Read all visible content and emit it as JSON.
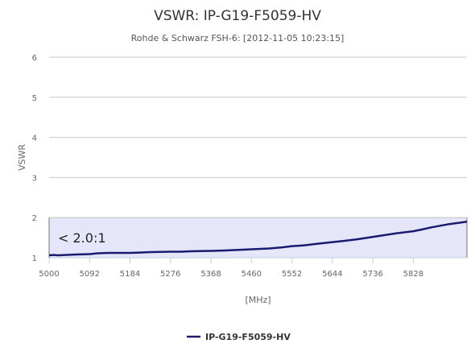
{
  "chart_data": {
    "type": "line",
    "title": "VSWR: IP-G19-F5059-HV",
    "subtitle": "Rohde & Schwarz FSH-6: [2012-11-05 10:23:15]",
    "xlabel": "[MHz]",
    "ylabel": "VSWR",
    "xlim": [
      5000,
      5950
    ],
    "ylim": [
      1,
      6
    ],
    "x_ticks": [
      5000,
      5092,
      5184,
      5276,
      5368,
      5460,
      5552,
      5644,
      5736,
      5828
    ],
    "y_ticks": [
      1,
      2,
      3,
      4,
      5,
      6
    ],
    "grid": true,
    "legend_position": "bottom-center",
    "band": {
      "from": 1,
      "to": 2,
      "label": "< 2.0:1",
      "color": "#e6e6fa"
    },
    "series": [
      {
        "name": "IP-G19-F5059-HV",
        "color": "#1a1a6e",
        "x": [
          5000,
          5010,
          5020,
          5040,
          5060,
          5092,
          5110,
          5138,
          5184,
          5210,
          5230,
          5276,
          5300,
          5320,
          5368,
          5400,
          5420,
          5460,
          5500,
          5530,
          5552,
          5580,
          5610,
          5644,
          5670,
          5700,
          5736,
          5760,
          5790,
          5828,
          5850,
          5870,
          5890,
          5910,
          5930,
          5950
        ],
        "values": [
          1.06,
          1.07,
          1.06,
          1.07,
          1.08,
          1.09,
          1.11,
          1.12,
          1.12,
          1.13,
          1.14,
          1.15,
          1.15,
          1.16,
          1.17,
          1.18,
          1.19,
          1.21,
          1.23,
          1.26,
          1.29,
          1.31,
          1.35,
          1.39,
          1.42,
          1.46,
          1.52,
          1.56,
          1.61,
          1.66,
          1.71,
          1.76,
          1.8,
          1.84,
          1.87,
          1.9
        ]
      }
    ]
  }
}
